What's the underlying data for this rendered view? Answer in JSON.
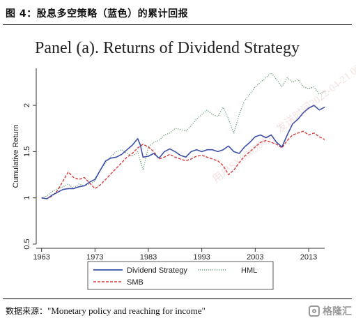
{
  "figure": {
    "title": "图 4：股息多空策略（蓝色）的累计回报",
    "panel_title": "Panel (a). Returns of Dividend Strategy",
    "source_label": "数据来源：",
    "source_text": "\"Monetary policy and reaching for income\"",
    "brand": "格隆汇",
    "watermark": "用户SX0063845，发送时间2022-04-21 00:0"
  },
  "colors": {
    "dividend": "#3a4fa8",
    "hml": "#6aa07a",
    "smb": "#d33a3a",
    "axis": "#333333"
  },
  "chart_data": {
    "type": "line",
    "title": "Panel (a). Returns of Dividend Strategy",
    "xlabel": "",
    "ylabel": "Cumulative Return",
    "xlim": [
      1962,
      2016
    ],
    "ylim": [
      0.5,
      2.4
    ],
    "x_ticks": [
      1963,
      1973,
      1983,
      1993,
      2003,
      2013
    ],
    "y_ticks": [
      0.5,
      1,
      1.5,
      2
    ],
    "y_tick_labels": [
      "0.5",
      "1",
      "1.5",
      "2"
    ],
    "legend_position": "bottom",
    "series": [
      {
        "name": "Dividend Strategy",
        "style": "solid",
        "points": [
          [
            1963,
            1.0
          ],
          [
            1964,
            0.99
          ],
          [
            1965,
            1.03
          ],
          [
            1966,
            1.06
          ],
          [
            1967,
            1.09
          ],
          [
            1968,
            1.1
          ],
          [
            1969,
            1.1
          ],
          [
            1970,
            1.12
          ],
          [
            1971,
            1.13
          ],
          [
            1972,
            1.17
          ],
          [
            1973,
            1.2
          ],
          [
            1974,
            1.3
          ],
          [
            1975,
            1.4
          ],
          [
            1976,
            1.43
          ],
          [
            1977,
            1.44
          ],
          [
            1978,
            1.47
          ],
          [
            1979,
            1.52
          ],
          [
            1980,
            1.57
          ],
          [
            1981,
            1.64
          ],
          [
            1981.5,
            1.57
          ],
          [
            1982,
            1.44
          ],
          [
            1983,
            1.45
          ],
          [
            1984,
            1.48
          ],
          [
            1985,
            1.43
          ],
          [
            1986,
            1.5
          ],
          [
            1987,
            1.53
          ],
          [
            1988,
            1.5
          ],
          [
            1989,
            1.46
          ],
          [
            1990,
            1.44
          ],
          [
            1991,
            1.5
          ],
          [
            1992,
            1.52
          ],
          [
            1993,
            1.5
          ],
          [
            1994,
            1.52
          ],
          [
            1995,
            1.52
          ],
          [
            1996,
            1.5
          ],
          [
            1997,
            1.52
          ],
          [
            1998,
            1.56
          ],
          [
            1999,
            1.5
          ],
          [
            2000,
            1.48
          ],
          [
            2001,
            1.55
          ],
          [
            2002,
            1.6
          ],
          [
            2003,
            1.66
          ],
          [
            2004,
            1.68
          ],
          [
            2005,
            1.65
          ],
          [
            2006,
            1.68
          ],
          [
            2007,
            1.6
          ],
          [
            2008,
            1.55
          ],
          [
            2009,
            1.68
          ],
          [
            2010,
            1.8
          ],
          [
            2011,
            1.85
          ],
          [
            2012,
            1.92
          ],
          [
            2013,
            1.97
          ],
          [
            2014,
            2.0
          ],
          [
            2015,
            1.95
          ],
          [
            2016,
            1.98
          ]
        ]
      },
      {
        "name": "HML",
        "style": "dotted",
        "points": [
          [
            1963,
            1.0
          ],
          [
            1964,
            1.02
          ],
          [
            1965,
            1.07
          ],
          [
            1966,
            1.1
          ],
          [
            1967,
            1.12
          ],
          [
            1968,
            1.15
          ],
          [
            1969,
            1.1
          ],
          [
            1970,
            1.15
          ],
          [
            1971,
            1.13
          ],
          [
            1972,
            1.15
          ],
          [
            1973,
            1.18
          ],
          [
            1974,
            1.3
          ],
          [
            1975,
            1.38
          ],
          [
            1976,
            1.45
          ],
          [
            1977,
            1.5
          ],
          [
            1978,
            1.52
          ],
          [
            1979,
            1.48
          ],
          [
            1980,
            1.45
          ],
          [
            1981,
            1.5
          ],
          [
            1982,
            1.3
          ],
          [
            1983,
            1.55
          ],
          [
            1984,
            1.6
          ],
          [
            1985,
            1.62
          ],
          [
            1986,
            1.68
          ],
          [
            1987,
            1.7
          ],
          [
            1988,
            1.75
          ],
          [
            1989,
            1.74
          ],
          [
            1990,
            1.72
          ],
          [
            1991,
            1.78
          ],
          [
            1992,
            1.85
          ],
          [
            1993,
            1.9
          ],
          [
            1994,
            1.95
          ],
          [
            1995,
            1.9
          ],
          [
            1996,
            1.88
          ],
          [
            1997,
            1.98
          ],
          [
            1998,
            1.85
          ],
          [
            1999,
            1.7
          ],
          [
            2000,
            1.9
          ],
          [
            2001,
            2.05
          ],
          [
            2002,
            2.12
          ],
          [
            2003,
            2.2
          ],
          [
            2004,
            2.25
          ],
          [
            2005,
            2.3
          ],
          [
            2006,
            2.35
          ],
          [
            2007,
            2.28
          ],
          [
            2008,
            2.2
          ],
          [
            2009,
            2.3
          ],
          [
            2010,
            2.25
          ],
          [
            2011,
            2.28
          ],
          [
            2012,
            2.2
          ],
          [
            2013,
            2.18
          ],
          [
            2014,
            2.2
          ],
          [
            2015,
            2.12
          ],
          [
            2016,
            2.15
          ]
        ]
      },
      {
        "name": "SMB",
        "style": "dashed",
        "points": [
          [
            1963,
            1.0
          ],
          [
            1964,
            0.99
          ],
          [
            1965,
            1.02
          ],
          [
            1966,
            1.08
          ],
          [
            1967,
            1.18
          ],
          [
            1968,
            1.28
          ],
          [
            1969,
            1.22
          ],
          [
            1970,
            1.2
          ],
          [
            1971,
            1.22
          ],
          [
            1972,
            1.16
          ],
          [
            1973,
            1.1
          ],
          [
            1974,
            1.14
          ],
          [
            1975,
            1.2
          ],
          [
            1976,
            1.26
          ],
          [
            1977,
            1.32
          ],
          [
            1978,
            1.38
          ],
          [
            1979,
            1.44
          ],
          [
            1980,
            1.48
          ],
          [
            1981,
            1.54
          ],
          [
            1982,
            1.58
          ],
          [
            1983,
            1.55
          ],
          [
            1984,
            1.5
          ],
          [
            1985,
            1.42
          ],
          [
            1986,
            1.44
          ],
          [
            1987,
            1.47
          ],
          [
            1988,
            1.44
          ],
          [
            1989,
            1.42
          ],
          [
            1990,
            1.4
          ],
          [
            1991,
            1.42
          ],
          [
            1992,
            1.45
          ],
          [
            1993,
            1.46
          ],
          [
            1994,
            1.44
          ],
          [
            1995,
            1.42
          ],
          [
            1996,
            1.4
          ],
          [
            1997,
            1.35
          ],
          [
            1998,
            1.25
          ],
          [
            1999,
            1.3
          ],
          [
            2000,
            1.38
          ],
          [
            2001,
            1.45
          ],
          [
            2002,
            1.5
          ],
          [
            2003,
            1.55
          ],
          [
            2004,
            1.6
          ],
          [
            2005,
            1.62
          ],
          [
            2006,
            1.6
          ],
          [
            2007,
            1.58
          ],
          [
            2008,
            1.54
          ],
          [
            2009,
            1.62
          ],
          [
            2010,
            1.68
          ],
          [
            2011,
            1.7
          ],
          [
            2012,
            1.72
          ],
          [
            2013,
            1.68
          ],
          [
            2014,
            1.7
          ],
          [
            2015,
            1.66
          ],
          [
            2016,
            1.63
          ]
        ]
      }
    ]
  }
}
